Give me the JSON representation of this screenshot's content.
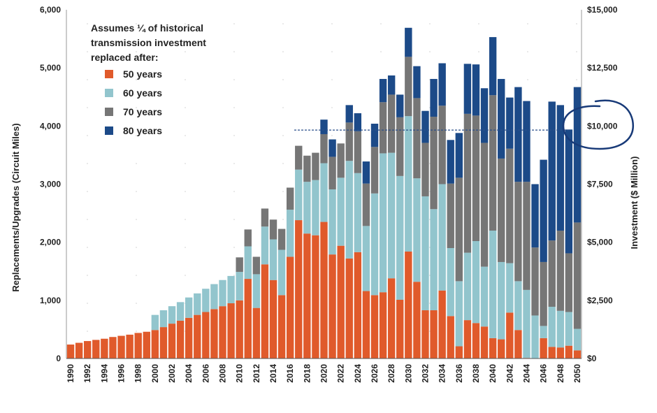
{
  "chart_data": {
    "type": "bar",
    "stacked": true,
    "xlabel": "",
    "ylabel": "Replacements/Upgrades (Circuit Miles)",
    "y2label": "Investment ($ Million)",
    "ylim": [
      0,
      6000
    ],
    "y2lim": [
      0,
      15000
    ],
    "yticks": [
      "0",
      "1,000",
      "2,000",
      "3,000",
      "4,000",
      "5,000",
      "6,000"
    ],
    "y2ticks": [
      "$0",
      "$2,500",
      "$5,000",
      "$7,500",
      "$10,000",
      "$12,500",
      "$15,000"
    ],
    "legend_title": [
      "Assumes ¼ of historical",
      "transmission investment",
      "replaced after:"
    ],
    "legend_position": "top-left",
    "reference_line": 3930,
    "categories": [
      "1990",
      "1991",
      "1992",
      "1993",
      "1994",
      "1995",
      "1996",
      "1997",
      "1998",
      "1999",
      "2000",
      "2001",
      "2002",
      "2003",
      "2004",
      "2005",
      "2006",
      "2007",
      "2008",
      "2009",
      "2010",
      "2011",
      "2012",
      "2013",
      "2014",
      "2015",
      "2016",
      "2017",
      "2018",
      "2019",
      "2020",
      "2021",
      "2022",
      "2023",
      "2024",
      "2025",
      "2026",
      "2027",
      "2028",
      "2029",
      "2030",
      "2031",
      "2032",
      "2033",
      "2034",
      "2035",
      "2036",
      "2037",
      "2038",
      "2039",
      "2040",
      "2041",
      "2042",
      "2043",
      "2044",
      "2045",
      "2046",
      "2047",
      "2048",
      "2049",
      "2050"
    ],
    "x_tick_labels": [
      "1990",
      "1992",
      "1994",
      "1996",
      "1998",
      "2000",
      "2002",
      "2004",
      "2006",
      "2008",
      "2010",
      "2012",
      "2014",
      "2016",
      "2018",
      "2020",
      "2022",
      "2024",
      "2026",
      "2028",
      "2030",
      "2032",
      "2034",
      "2036",
      "2038",
      "2040",
      "2042",
      "2044",
      "2046",
      "2048",
      "2050"
    ],
    "series": [
      {
        "name": "50 years",
        "color": "#e05a2b",
        "values": [
          240,
          270,
          300,
          320,
          340,
          370,
          390,
          410,
          440,
          460,
          490,
          540,
          600,
          650,
          700,
          750,
          800,
          850,
          900,
          950,
          1000,
          1370,
          870,
          1620,
          1350,
          1090,
          1750,
          2380,
          2150,
          2120,
          2350,
          1790,
          1940,
          1720,
          1830,
          1160,
          1090,
          1140,
          1380,
          1010,
          1840,
          1320,
          830,
          830,
          1170,
          730,
          210,
          660,
          610,
          550,
          350,
          330,
          790,
          490,
          10,
          0,
          350,
          200,
          190,
          220,
          140
        ]
      },
      {
        "name": "60 years",
        "color": "#92c5cd",
        "values": [
          0,
          0,
          0,
          0,
          0,
          0,
          0,
          0,
          0,
          0,
          260,
          290,
          300,
          320,
          350,
          370,
          400,
          430,
          450,
          470,
          490,
          560,
          580,
          650,
          700,
          780,
          810,
          870,
          890,
          950,
          1010,
          1120,
          1170,
          1680,
          1360,
          1120,
          1750,
          2390,
          2160,
          2130,
          2330,
          1780,
          1960,
          1740,
          1830,
          1170,
          1120,
          1160,
          1410,
          1030,
          1850,
          1330,
          850,
          840,
          1170,
          740,
          210,
          690,
          630,
          580,
          370
        ]
      },
      {
        "name": "70 years",
        "color": "#767676",
        "values": [
          0,
          0,
          0,
          0,
          0,
          0,
          0,
          0,
          0,
          0,
          0,
          0,
          0,
          0,
          0,
          0,
          0,
          0,
          0,
          0,
          250,
          290,
          300,
          310,
          340,
          360,
          380,
          410,
          450,
          470,
          500,
          560,
          590,
          660,
          720,
          730,
          800,
          880,
          1000,
          1010,
          1020,
          1380,
          920,
          1590,
          1350,
          1110,
          1780,
          2390,
          2160,
          2130,
          2330,
          1780,
          1970,
          1710,
          1860,
          1170,
          1100,
          1140,
          1380,
          1010,
          1830
        ]
      },
      {
        "name": "80 years",
        "color": "#1c4a88",
        "values": [
          0,
          0,
          0,
          0,
          0,
          0,
          0,
          0,
          0,
          0,
          0,
          0,
          0,
          0,
          0,
          0,
          0,
          0,
          0,
          0,
          0,
          0,
          0,
          0,
          0,
          0,
          0,
          0,
          0,
          0,
          250,
          300,
          0,
          300,
          310,
          380,
          400,
          400,
          330,
          390,
          500,
          550,
          550,
          650,
          730,
          750,
          770,
          860,
          880,
          940,
          1000,
          1370,
          880,
          1630,
          1390,
          1090,
          1760,
          2390,
          2160,
          2130,
          2330
        ]
      }
    ]
  }
}
